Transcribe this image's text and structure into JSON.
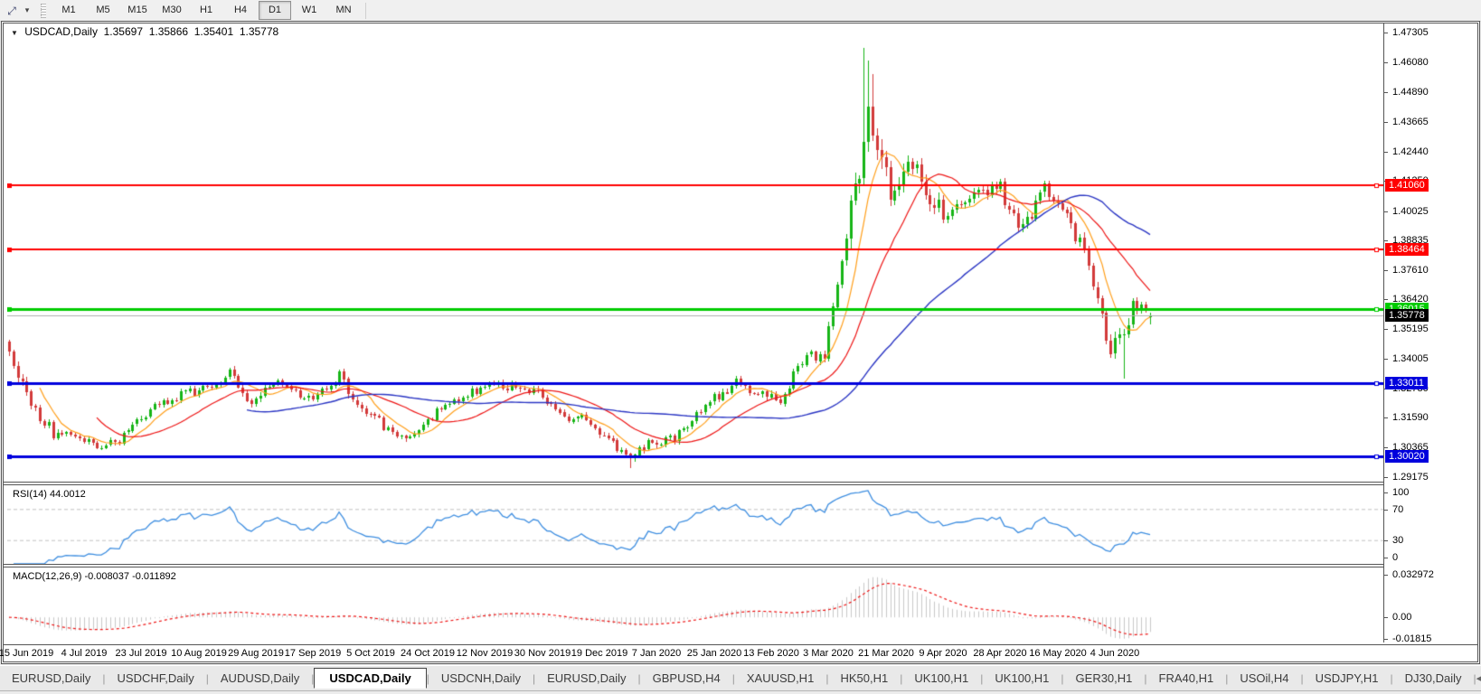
{
  "toolbar": {
    "chart_tool_icon": "chart-cycle-icon",
    "timeframes": [
      {
        "label": "M1",
        "active": false
      },
      {
        "label": "M5",
        "active": false
      },
      {
        "label": "M15",
        "active": false
      },
      {
        "label": "M30",
        "active": false
      },
      {
        "label": "H1",
        "active": false
      },
      {
        "label": "H4",
        "active": false
      },
      {
        "label": "D1",
        "active": true
      },
      {
        "label": "W1",
        "active": false
      },
      {
        "label": "MN",
        "active": false
      }
    ]
  },
  "chart_data": {
    "type": "candlestick",
    "title": {
      "symbol": "USDCAD,Daily",
      "open": "1.35697",
      "high": "1.35866",
      "low": "1.35401",
      "close": "1.35778"
    },
    "colors": {
      "up": "#16b516",
      "down": "#d23a3a",
      "ma_fast": "#ff9f1a",
      "ma_mid": "#ee1515",
      "ma_slow": "#2b36c4",
      "rsi": "#3e8ee0",
      "rsi_level": "#c0c0c0",
      "macd_hist": "#c8c8c8",
      "macd_signal": "#ee1515",
      "current_line": "#b0b0b0",
      "axis_text": "#000000"
    },
    "price_axis": {
      "range": {
        "max": 1.4768,
        "min": 1.2898
      },
      "ticks": [
        "1.47305",
        "1.46080",
        "1.44890",
        "1.43665",
        "1.42440",
        "1.41250",
        "1.40025",
        "1.38835",
        "1.37610",
        "1.36420",
        "1.35195",
        "1.34005",
        "1.32780",
        "1.31590",
        "1.30365",
        "1.29175"
      ]
    },
    "x_axis": {
      "labels": [
        "15 Jun 2019",
        "4 Jul 2019",
        "23 Jul 2019",
        "10 Aug 2019",
        "29 Aug 2019",
        "17 Sep 2019",
        "5 Oct 2019",
        "24 Oct 2019",
        "12 Nov 2019",
        "30 Nov 2019",
        "19 Dec 2019",
        "7 Jan 2020",
        "25 Jan 2020",
        "13 Feb 2020",
        "3 Mar 2020",
        "21 Mar 2020",
        "9 Apr 2020",
        "28 Apr 2020",
        "16 May 2020",
        "4 Jun 2020"
      ],
      "first_label_candle": 4,
      "label_step": 13,
      "candle_count": 260
    },
    "hlines": [
      {
        "price": 1.4106,
        "label": "1.41060",
        "color": "#ff0000",
        "width": 2
      },
      {
        "price": 1.38464,
        "label": "1.38464",
        "color": "#ff0000",
        "width": 2
      },
      {
        "price": 1.36015,
        "label": "1.36015",
        "color": "#00cc00",
        "width": 3
      },
      {
        "price": 1.33011,
        "label": "1.33011",
        "color": "#0000dd",
        "width": 3
      },
      {
        "price": 1.3002,
        "label": "1.30020",
        "color": "#0000dd",
        "width": 3
      }
    ],
    "current_price": {
      "price": 1.35778,
      "label": "1.35778",
      "line_color": "#b0b0b0",
      "label_bg": "#000000"
    },
    "weekly_closes": [
      1.342,
      1.3215,
      1.3095,
      1.3075,
      1.304,
      1.307,
      1.3165,
      1.323,
      1.3255,
      1.328,
      1.3335,
      1.322,
      1.33,
      1.326,
      1.325,
      1.333,
      1.32,
      1.3125,
      1.306,
      1.3145,
      1.323,
      1.326,
      1.33,
      1.328,
      1.3255,
      1.3165,
      1.316,
      1.308,
      1.2995,
      1.3055,
      1.3065,
      1.3145,
      1.3235,
      1.3305,
      1.3255,
      1.323,
      1.3395,
      1.342,
      1.389,
      1.435,
      1.406,
      1.419,
      1.4015,
      1.4,
      1.4095,
      1.409,
      1.3925,
      1.4115,
      1.399,
      1.3785,
      1.3425,
      1.3605,
      1.35778
    ],
    "vol_weeks": [
      1.6,
      1.3,
      1.0,
      1.0,
      1.0,
      1.0,
      1.0,
      1.0,
      1.0,
      1.0,
      1.2,
      1.2,
      1.0,
      1.0,
      1.0,
      1.2,
      1.1,
      1.0,
      1.0,
      1.0,
      1.0,
      1.0,
      1.0,
      1.0,
      1.0,
      1.0,
      1.0,
      1.0,
      1.1,
      1.0,
      1.0,
      1.0,
      1.0,
      1.0,
      1.0,
      1.0,
      1.3,
      1.4,
      3.2,
      4.0,
      3.2,
      2.6,
      2.2,
      2.0,
      1.8,
      1.8,
      1.8,
      1.8,
      1.8,
      1.9,
      2.3,
      1.6,
      1.2
    ],
    "wick_overrides": {
      "141": {
        "l": 1.2952
      },
      "194": {
        "h": 1.4668
      },
      "195": {
        "h": 1.4615
      },
      "196": {
        "h": 1.456
      },
      "253": {
        "l": 1.332
      }
    },
    "last_candle": {
      "o": 1.35697,
      "h": 1.35866,
      "l": 1.35401,
      "c": 1.35778
    },
    "indicators": {
      "moving_averages": [
        {
          "period": 8,
          "color": "#ff9f1a"
        },
        {
          "period": 21,
          "color": "#ee1515"
        },
        {
          "period": 55,
          "color": "#2b36c4"
        }
      ],
      "rsi": {
        "label": "RSI(14) 44.0012",
        "period": 14,
        "levels": [
          70,
          30
        ],
        "axis_labels": [
          "100",
          "70",
          "30",
          "0"
        ],
        "range": {
          "max": 100,
          "min": 0
        }
      },
      "macd": {
        "label": "MACD(12,26,9) -0.008037 -0.011892",
        "fast": 12,
        "slow": 26,
        "signal": 9,
        "axis_labels": [
          "0.032972",
          "0.00",
          "-0.01815"
        ],
        "range": {
          "max": 0.032972,
          "min": -0.01815
        }
      }
    }
  },
  "tabs": {
    "items": [
      {
        "label": "EURUSD,Daily",
        "active": false
      },
      {
        "label": "USDCHF,Daily",
        "active": false
      },
      {
        "label": "AUDUSD,Daily",
        "active": false
      },
      {
        "label": "USDCAD,Daily",
        "active": true
      },
      {
        "label": "USDCNH,Daily",
        "active": false
      },
      {
        "label": "EURUSD,Daily",
        "active": false
      },
      {
        "label": "GBPUSD,H4",
        "active": false
      },
      {
        "label": "XAUUSD,H1",
        "active": false
      },
      {
        "label": "HK50,H1",
        "active": false
      },
      {
        "label": "UK100,H1",
        "active": false
      },
      {
        "label": "UK100,H1",
        "active": false
      },
      {
        "label": "GER30,H1",
        "active": false
      },
      {
        "label": "FRA40,H1",
        "active": false
      },
      {
        "label": "USOil,H4",
        "active": false
      },
      {
        "label": "USDJPY,H1",
        "active": false
      },
      {
        "label": "DJ30,Daily",
        "active": false
      }
    ],
    "scroll_left_icon": "◂",
    "scroll_right_icon": "▸"
  }
}
